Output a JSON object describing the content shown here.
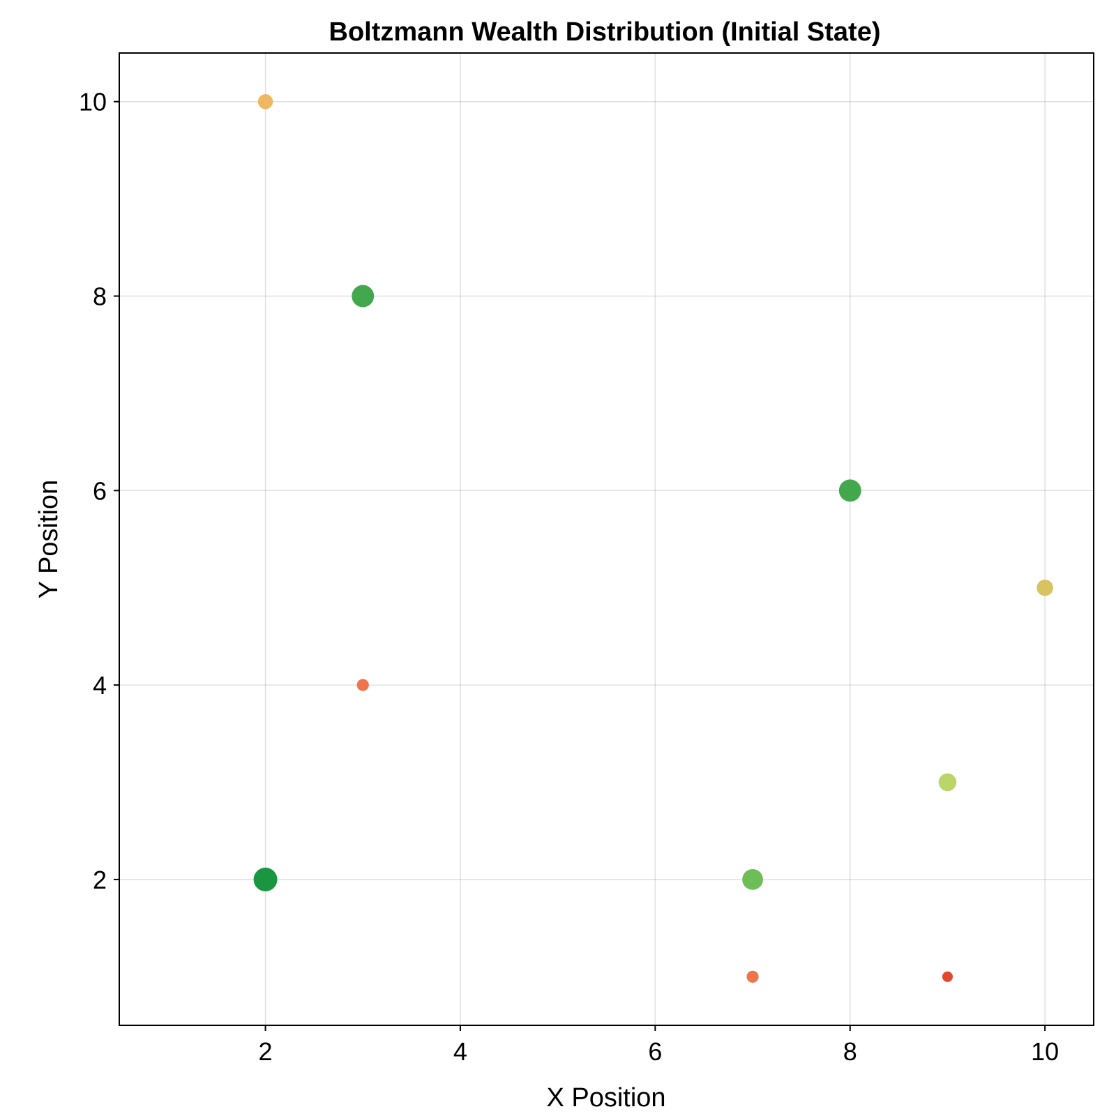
{
  "chart_data": {
    "type": "scatter",
    "title": "Boltzmann Wealth Distribution (Initial State)",
    "xlabel": "X Position",
    "ylabel": "Y Position",
    "xlim": [
      0.5,
      10.5
    ],
    "ylim": [
      0.5,
      10.5
    ],
    "xticks": [
      2,
      4,
      6,
      8,
      10
    ],
    "yticks": [
      2,
      4,
      6,
      8,
      10
    ],
    "grid": true,
    "points": [
      {
        "x": 2,
        "y": 10,
        "wealth": 4,
        "color": "#F0B763"
      },
      {
        "x": 3,
        "y": 8,
        "wealth": 9,
        "color": "#43A84D"
      },
      {
        "x": 8,
        "y": 6,
        "wealth": 9,
        "color": "#43A84D"
      },
      {
        "x": 10,
        "y": 5,
        "wealth": 5,
        "color": "#D7C460"
      },
      {
        "x": 3,
        "y": 4,
        "wealth": 2,
        "color": "#F07449"
      },
      {
        "x": 9,
        "y": 3,
        "wealth": 6,
        "color": "#BCD56A"
      },
      {
        "x": 2,
        "y": 2,
        "wealth": 10,
        "color": "#1A9641"
      },
      {
        "x": 7,
        "y": 2,
        "wealth": 8,
        "color": "#6DBE57"
      },
      {
        "x": 7,
        "y": 1,
        "wealth": 2,
        "color": "#F07449"
      },
      {
        "x": 9,
        "y": 1,
        "wealth": 1,
        "color": "#E4462E"
      }
    ]
  }
}
